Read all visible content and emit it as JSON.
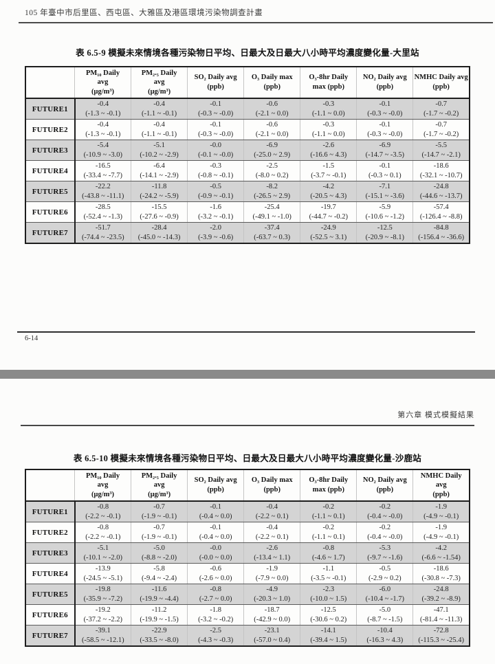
{
  "page1": {
    "header_title": "105 年臺中市后里區、西屯區、大雅區及港區環境污染物調查計畫",
    "page_number": "6-14"
  },
  "page2": {
    "chapter_header": "第六章  模式模擬結果"
  },
  "colors": {
    "row_shade": "#d4d4d4",
    "page_divider": "#8a8a8a",
    "table_border": "#1d1d1d"
  },
  "tables": [
    {
      "title": "表 6.5-9  模擬未來情境各種污染物日平均、日最大及日最大八小時平均濃度變化量-大里站",
      "columns": [
        {
          "lines": [
            "PM₁₀ Daily",
            "avg",
            "(μg/m³)"
          ]
        },
        {
          "lines": [
            "PM₂.₅ Daily",
            "avg",
            "(μg/m³)"
          ]
        },
        {
          "lines": [
            "SO₂ Daily avg",
            "(ppb)"
          ]
        },
        {
          "lines": [
            "O₃ Daily max",
            "(ppb)"
          ]
        },
        {
          "lines": [
            "O₃-8hr Daily",
            "max (ppb)"
          ]
        },
        {
          "lines": [
            "NO₂ Daily avg",
            "(ppb)"
          ]
        },
        {
          "lines": [
            "NMHC Daily avg",
            "(ppb)"
          ]
        }
      ],
      "rows": [
        {
          "label": "FUTURE1",
          "cells": [
            [
              "-0.4",
              "(-1.3 ~ -0.1)"
            ],
            [
              "-0.4",
              "(-1.1 ~ -0.1)"
            ],
            [
              "-0.1",
              "(-0.3 ~ -0.0)"
            ],
            [
              "-0.6",
              "(-2.1 ~ 0.0)"
            ],
            [
              "-0.3",
              "(-1.1 ~ 0.0)"
            ],
            [
              "-0.1",
              "(-0.3 ~ -0.0)"
            ],
            [
              "-0.7",
              "(-1.7 ~ -0.2)"
            ]
          ]
        },
        {
          "label": "FUTURE2",
          "cells": [
            [
              "-0.4",
              "(-1.3 ~ -0.1)"
            ],
            [
              "-0.4",
              "(-1.1 ~ -0.1)"
            ],
            [
              "-0.1",
              "(-0.3 ~ -0.0)"
            ],
            [
              "-0.6",
              "(-2.1 ~ 0.0)"
            ],
            [
              "-0.3",
              "(-1.1 ~ 0.0)"
            ],
            [
              "-0.1",
              "(-0.3 ~ -0.0)"
            ],
            [
              "-0.7",
              "(-1.7 ~ -0.2)"
            ]
          ]
        },
        {
          "label": "FUTURE3",
          "cells": [
            [
              "-5.4",
              "(-10.9 ~ -3.0)"
            ],
            [
              "-5.1",
              "(-10.2 ~ -2.9)"
            ],
            [
              "-0.0",
              "(-0.1 ~ -0.0)"
            ],
            [
              "-6.9",
              "(-25.0 ~ 2.9)"
            ],
            [
              "-2.6",
              "(-16.6 ~ 4.3)"
            ],
            [
              "-6.9",
              "(-14.7 ~ -3.5)"
            ],
            [
              "-5.5",
              "(-14.7 ~ -2.1)"
            ]
          ]
        },
        {
          "label": "FUTURE4",
          "cells": [
            [
              "-16.5",
              "(-33.4 ~ -7.7)"
            ],
            [
              "-6.4",
              "(-14.1 ~ -2.9)"
            ],
            [
              "-0.3",
              "(-0.8 ~ -0.1)"
            ],
            [
              "-2.5",
              "(-8.0 ~ 0.2)"
            ],
            [
              "-1.5",
              "(-3.7 ~ -0.1)"
            ],
            [
              "-0.1",
              "(-0.3 ~ 0.1)"
            ],
            [
              "-18.6",
              "(-32.1 ~ -10.7)"
            ]
          ]
        },
        {
          "label": "FUTURE5",
          "cells": [
            [
              "-22.2",
              "(-43.8 ~ -11.1)"
            ],
            [
              "-11.8",
              "(-24.2 ~ -5.9)"
            ],
            [
              "-0.5",
              "(-0.9 ~ -0.1)"
            ],
            [
              "-8.2",
              "(-26.5 ~ 2.9)"
            ],
            [
              "-4.2",
              "(-20.5 ~ 4.3)"
            ],
            [
              "-7.1",
              "(-15.1 ~ -3.6)"
            ],
            [
              "-24.8",
              "(-44.6 ~ -13.7)"
            ]
          ]
        },
        {
          "label": "FUTURE6",
          "cells": [
            [
              "-28.5",
              "(-52.4 ~ -1.3)"
            ],
            [
              "-15.5",
              "(-27.6 ~ -0.9)"
            ],
            [
              "-1.6",
              "(-3.2 ~ -0.1)"
            ],
            [
              "-25.4",
              "(-49.1 ~ -1.0)"
            ],
            [
              "-19.7",
              "(-44.7 ~ -0.2)"
            ],
            [
              "-5.9",
              "(-10.6 ~ -1.2)"
            ],
            [
              "-57.4",
              "(-126.4 ~ -8.8)"
            ]
          ]
        },
        {
          "label": "FUTURE7",
          "cells": [
            [
              "-51.7",
              "(-74.4 ~ -23.5)"
            ],
            [
              "-28.4",
              "(-45.0 ~ -14.3)"
            ],
            [
              "-2.0",
              "(-3.9 ~ -0.6)"
            ],
            [
              "-37.4",
              "(-63.7 ~ 0.3)"
            ],
            [
              "-24.9",
              "(-52.5 ~ 3.1)"
            ],
            [
              "-12.5",
              "(-20.9 ~ -8.1)"
            ],
            [
              "-84.8",
              "(-156.4 ~ -36.6)"
            ]
          ]
        }
      ]
    },
    {
      "title": "表 6.5-10  模擬未來情境各種污染物日平均、日最大及日最大八小時平均濃度變化量-沙鹿站",
      "columns": [
        {
          "lines": [
            "PM₁₀ Daily",
            "avg",
            "(μg/m³)"
          ]
        },
        {
          "lines": [
            "PM₂.₅ Daily",
            "avg",
            "(μg/m³)"
          ]
        },
        {
          "lines": [
            "SO₂ Daily avg",
            "(ppb)"
          ]
        },
        {
          "lines": [
            "O₃ Daily max",
            "(ppb)"
          ]
        },
        {
          "lines": [
            "O₃-8hr Daily",
            "max (ppb)"
          ]
        },
        {
          "lines": [
            "NO₂ Daily avg",
            "(ppb)"
          ]
        },
        {
          "lines": [
            "NMHC Daily",
            "avg",
            "(ppb)"
          ]
        }
      ],
      "rows": [
        {
          "label": "FUTURE1",
          "cells": [
            [
              "-0.8",
              "(-2.2 ~ -0.1)"
            ],
            [
              "-0.7",
              "(-1.9 ~ -0.1)"
            ],
            [
              "-0.1",
              "(-0.4 ~ 0.0)"
            ],
            [
              "-0.4",
              "(-2.2 ~ 0.1)"
            ],
            [
              "-0.2",
              "(-1.1 ~ 0.1)"
            ],
            [
              "-0.2",
              "(-0.4 ~ -0.0)"
            ],
            [
              "-1.9",
              "(-4.9 ~ -0.1)"
            ]
          ]
        },
        {
          "label": "FUTURE2",
          "cells": [
            [
              "-0.8",
              "(-2.2 ~ -0.1)"
            ],
            [
              "-0.7",
              "(-1.9 ~ -0.1)"
            ],
            [
              "-0.1",
              "(-0.4 ~ 0.0)"
            ],
            [
              "-0.4",
              "(-2.2 ~ 0.1)"
            ],
            [
              "-0.2",
              "(-1.1 ~ 0.1)"
            ],
            [
              "-0.2",
              "(-0.4 ~ -0.0)"
            ],
            [
              "-1.9",
              "(-4.9 ~ -0.1)"
            ]
          ]
        },
        {
          "label": "FUTURE3",
          "cells": [
            [
              "-5.1",
              "(-10.1 ~ -2.0)"
            ],
            [
              "-5.0",
              "(-8.8 ~ -2.0)"
            ],
            [
              "-0.0",
              "(-0.0 ~ 0.0)"
            ],
            [
              "-2.6",
              "(-13.4 ~ 1.1)"
            ],
            [
              "-0.8",
              "(-4.6 ~ 1.7)"
            ],
            [
              "-5.3",
              "(-9.7 ~ -1.6)"
            ],
            [
              "-4.2",
              "(-6.6 ~ -1.54)"
            ]
          ]
        },
        {
          "label": "FUTURE4",
          "cells": [
            [
              "-13.9",
              "(-24.5 ~ -5.1)"
            ],
            [
              "-5.8",
              "(-9.4 ~ -2.4)"
            ],
            [
              "-0.6",
              "(-2.6 ~ 0.0)"
            ],
            [
              "-1.9",
              "(-7.9 ~ 0.0)"
            ],
            [
              "-1.1",
              "(-3.5 ~ -0.1)"
            ],
            [
              "-0.5",
              "(-2.9 ~ 0.2)"
            ],
            [
              "-18.6",
              "(-30.8 ~ -7.3)"
            ]
          ]
        },
        {
          "label": "FUTURE5",
          "cells": [
            [
              "-19.8",
              "(-35.9 ~ -7.2)"
            ],
            [
              "-11.6",
              "(-19.9 ~ -4.4)"
            ],
            [
              "-0.8",
              "(-2.7 ~ 0.0)"
            ],
            [
              "-4.9",
              "(-20.3 ~ 1.0)"
            ],
            [
              "-2.3",
              "(-10.0 ~ 1.5)"
            ],
            [
              "-6.0",
              "(-10.4 ~ -1.7)"
            ],
            [
              "-24.8",
              "(-39.2 ~ -8.9)"
            ]
          ]
        },
        {
          "label": "FUTURE6",
          "cells": [
            [
              "-19.2",
              "(-37.2 ~ -2.2)"
            ],
            [
              "-11.2",
              "(-19.9 ~ -1.5)"
            ],
            [
              "-1.8",
              "(-3.2 ~ -0.2)"
            ],
            [
              "-18.7",
              "(-42.9 ~ 0.0)"
            ],
            [
              "-12.5",
              "(-30.6 ~ 0.2)"
            ],
            [
              "-5.0",
              "(-8.7 ~ -1.5)"
            ],
            [
              "-47.1",
              "(-81.4 ~ -11.3)"
            ]
          ]
        },
        {
          "label": "FUTURE7",
          "cells": [
            [
              "-39.1",
              "(-58.5 ~ -12.1)"
            ],
            [
              "-22.9",
              "(-33.5 ~ -8.0)"
            ],
            [
              "-2.5",
              "(-4.3 ~ -0.3)"
            ],
            [
              "-23.1",
              "(-57.0 ~ 0.4)"
            ],
            [
              "-14.1",
              "(-39.4 ~ 1.5)"
            ],
            [
              "-10.4",
              "(-16.3 ~ 4.3)"
            ],
            [
              "-72.8",
              "(-115.3 ~ -25.4)"
            ]
          ]
        }
      ]
    }
  ]
}
